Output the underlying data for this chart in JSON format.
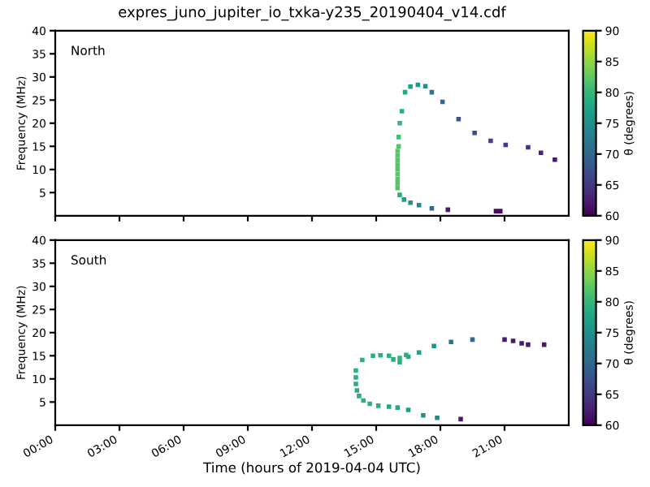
{
  "chart_data": [
    {
      "type": "scatter",
      "title": "expres_juno_jupiter_io_txka-y235_20190404_v14.cdf",
      "ylabel": "Frequency (MHz)",
      "clabel": "θ (degrees)",
      "annotations": [
        "North"
      ],
      "xlim": [
        0,
        24
      ],
      "xticks": [
        {
          "value": 0,
          "label": null
        },
        {
          "value": 3,
          "label": null
        },
        {
          "value": 6,
          "label": null
        },
        {
          "value": 9,
          "label": null
        },
        {
          "value": 12,
          "label": null
        },
        {
          "value": 15,
          "label": null
        },
        {
          "value": 18,
          "label": null
        },
        {
          "value": 21,
          "label": null
        }
      ],
      "ylim": [
        0,
        40
      ],
      "yticks": [
        5,
        10,
        15,
        20,
        25,
        30,
        35,
        40
      ],
      "clim": [
        60,
        90
      ],
      "cticks": [
        60,
        65,
        70,
        75,
        80,
        85,
        90
      ],
      "tick_labels": "y",
      "marker": "square",
      "grid": false,
      "series": [
        {
          "x": [
            16.0,
            16.0,
            16.0,
            16.0,
            16.0,
            16.0,
            16.0,
            16.0,
            16.0,
            16.05,
            16.05,
            16.1,
            16.2,
            16.35,
            16.6,
            16.95,
            17.3,
            17.6,
            18.1,
            18.85,
            19.6,
            20.35,
            21.05,
            22.1,
            22.7,
            23.35,
            16.1,
            16.3,
            16.6,
            17.0,
            17.6,
            18.35,
            20.6,
            20.8
          ],
          "values": [
            6,
            7,
            8,
            9,
            10,
            11,
            12,
            13,
            14,
            15,
            17,
            20,
            22.6,
            26.7,
            27.9,
            28.3,
            28.0,
            26.7,
            24.6,
            20.9,
            17.9,
            16.2,
            15.3,
            14.8,
            13.6,
            12.1,
            4.5,
            3.5,
            2.8,
            2.3,
            1.6,
            1.3,
            1.0,
            1.0
          ],
          "cvalues": [
            82,
            82,
            82,
            82,
            82,
            82,
            82,
            82,
            82,
            82,
            81,
            80,
            79,
            78,
            77,
            76,
            75,
            72,
            70,
            68,
            67,
            66,
            65,
            64,
            63,
            62,
            79,
            77,
            75,
            74,
            70,
            62,
            61,
            61
          ]
        }
      ]
    },
    {
      "type": "scatter",
      "xlabel": "Time (hours of 2019-04-04 UTC)",
      "ylabel": "Frequency (MHz)",
      "clabel": "θ (degrees)",
      "annotations": [
        "South"
      ],
      "xlim": [
        0,
        24
      ],
      "xticks": [
        {
          "value": 0,
          "label": "00:00"
        },
        {
          "value": 3,
          "label": "03:00"
        },
        {
          "value": 6,
          "label": "06:00"
        },
        {
          "value": 9,
          "label": "09:00"
        },
        {
          "value": 12,
          "label": "12:00"
        },
        {
          "value": 15,
          "label": "15:00"
        },
        {
          "value": 18,
          "label": "18:00"
        },
        {
          "value": 21,
          "label": "21:00"
        }
      ],
      "ylim": [
        0,
        40
      ],
      "yticks": [
        5,
        10,
        15,
        20,
        25,
        30,
        35,
        40
      ],
      "clim": [
        60,
        90
      ],
      "cticks": [
        60,
        65,
        70,
        75,
        80,
        85,
        90
      ],
      "marker": "square",
      "grid": false,
      "series": [
        {
          "x": [
            19.5,
            18.5,
            17.7,
            17.0,
            16.5,
            16.1,
            15.8,
            15.6,
            15.2,
            14.85,
            14.35,
            14.05,
            14.05,
            14.05,
            14.1,
            14.2,
            14.4,
            14.7,
            15.1,
            15.6,
            16.0,
            16.5,
            17.2,
            17.85,
            18.95,
            21.0,
            21.4,
            21.8,
            22.1,
            22.85,
            16.1,
            16.4
          ],
          "values": [
            18.5,
            18.0,
            17.1,
            15.7,
            14.8,
            13.6,
            14.2,
            15.0,
            15.1,
            15.0,
            14.1,
            11.8,
            10.3,
            8.9,
            7.5,
            6.3,
            5.3,
            4.6,
            4.2,
            4.0,
            3.8,
            3.3,
            2.1,
            1.6,
            1.3,
            18.5,
            18.2,
            17.7,
            17.4,
            17.4,
            14.5,
            15.2
          ],
          "cvalues": [
            70,
            72,
            75,
            77,
            78,
            79,
            79,
            79,
            79,
            79,
            79,
            79,
            79,
            79,
            79,
            79,
            79,
            79,
            79,
            78,
            78,
            77,
            75,
            74,
            62,
            62,
            62,
            62,
            62,
            62,
            80,
            79
          ]
        }
      ]
    }
  ]
}
